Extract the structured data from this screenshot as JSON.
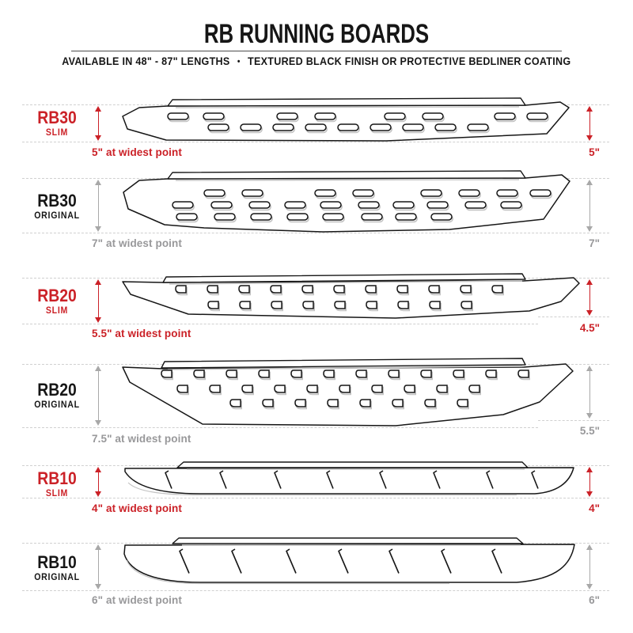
{
  "header": {
    "title": "RB RUNNING BOARDS",
    "subtitle_left": "AVAILABLE IN 48\" - 87\" LENGTHS",
    "subtitle_bullet": "•",
    "subtitle_right": "TEXTURED BLACK FINISH OR PROTECTIVE BEDLINER COATING"
  },
  "colors": {
    "red": "#cb2127",
    "ink": "#161616",
    "gray_text": "#98989a",
    "arrow_gray": "#a8a8a8",
    "dash": "#d0d0d0",
    "shadow": "#c3c3c3"
  },
  "boards": [
    {
      "model": "RB30",
      "variant": "SLIM",
      "accent": "red",
      "widest_label": "5\" at widest point",
      "height_value": "5\""
    },
    {
      "model": "RB30",
      "variant": "ORIGINAL",
      "accent": "gray",
      "widest_label": "7\" at widest point",
      "height_value": "7\""
    },
    {
      "model": "RB20",
      "variant": "SLIM",
      "accent": "red",
      "widest_label": "5.5\" at widest point",
      "height_value": "4.5\""
    },
    {
      "model": "RB20",
      "variant": "ORIGINAL",
      "accent": "gray",
      "widest_label": "7.5\" at widest point",
      "height_value": "5.5\""
    },
    {
      "model": "RB10",
      "variant": "SLIM",
      "accent": "red",
      "widest_label": "4\" at widest point",
      "height_value": "4\""
    },
    {
      "model": "RB10",
      "variant": "ORIGINAL",
      "accent": "gray",
      "widest_label": "6\" at widest point",
      "height_value": "6\""
    }
  ]
}
